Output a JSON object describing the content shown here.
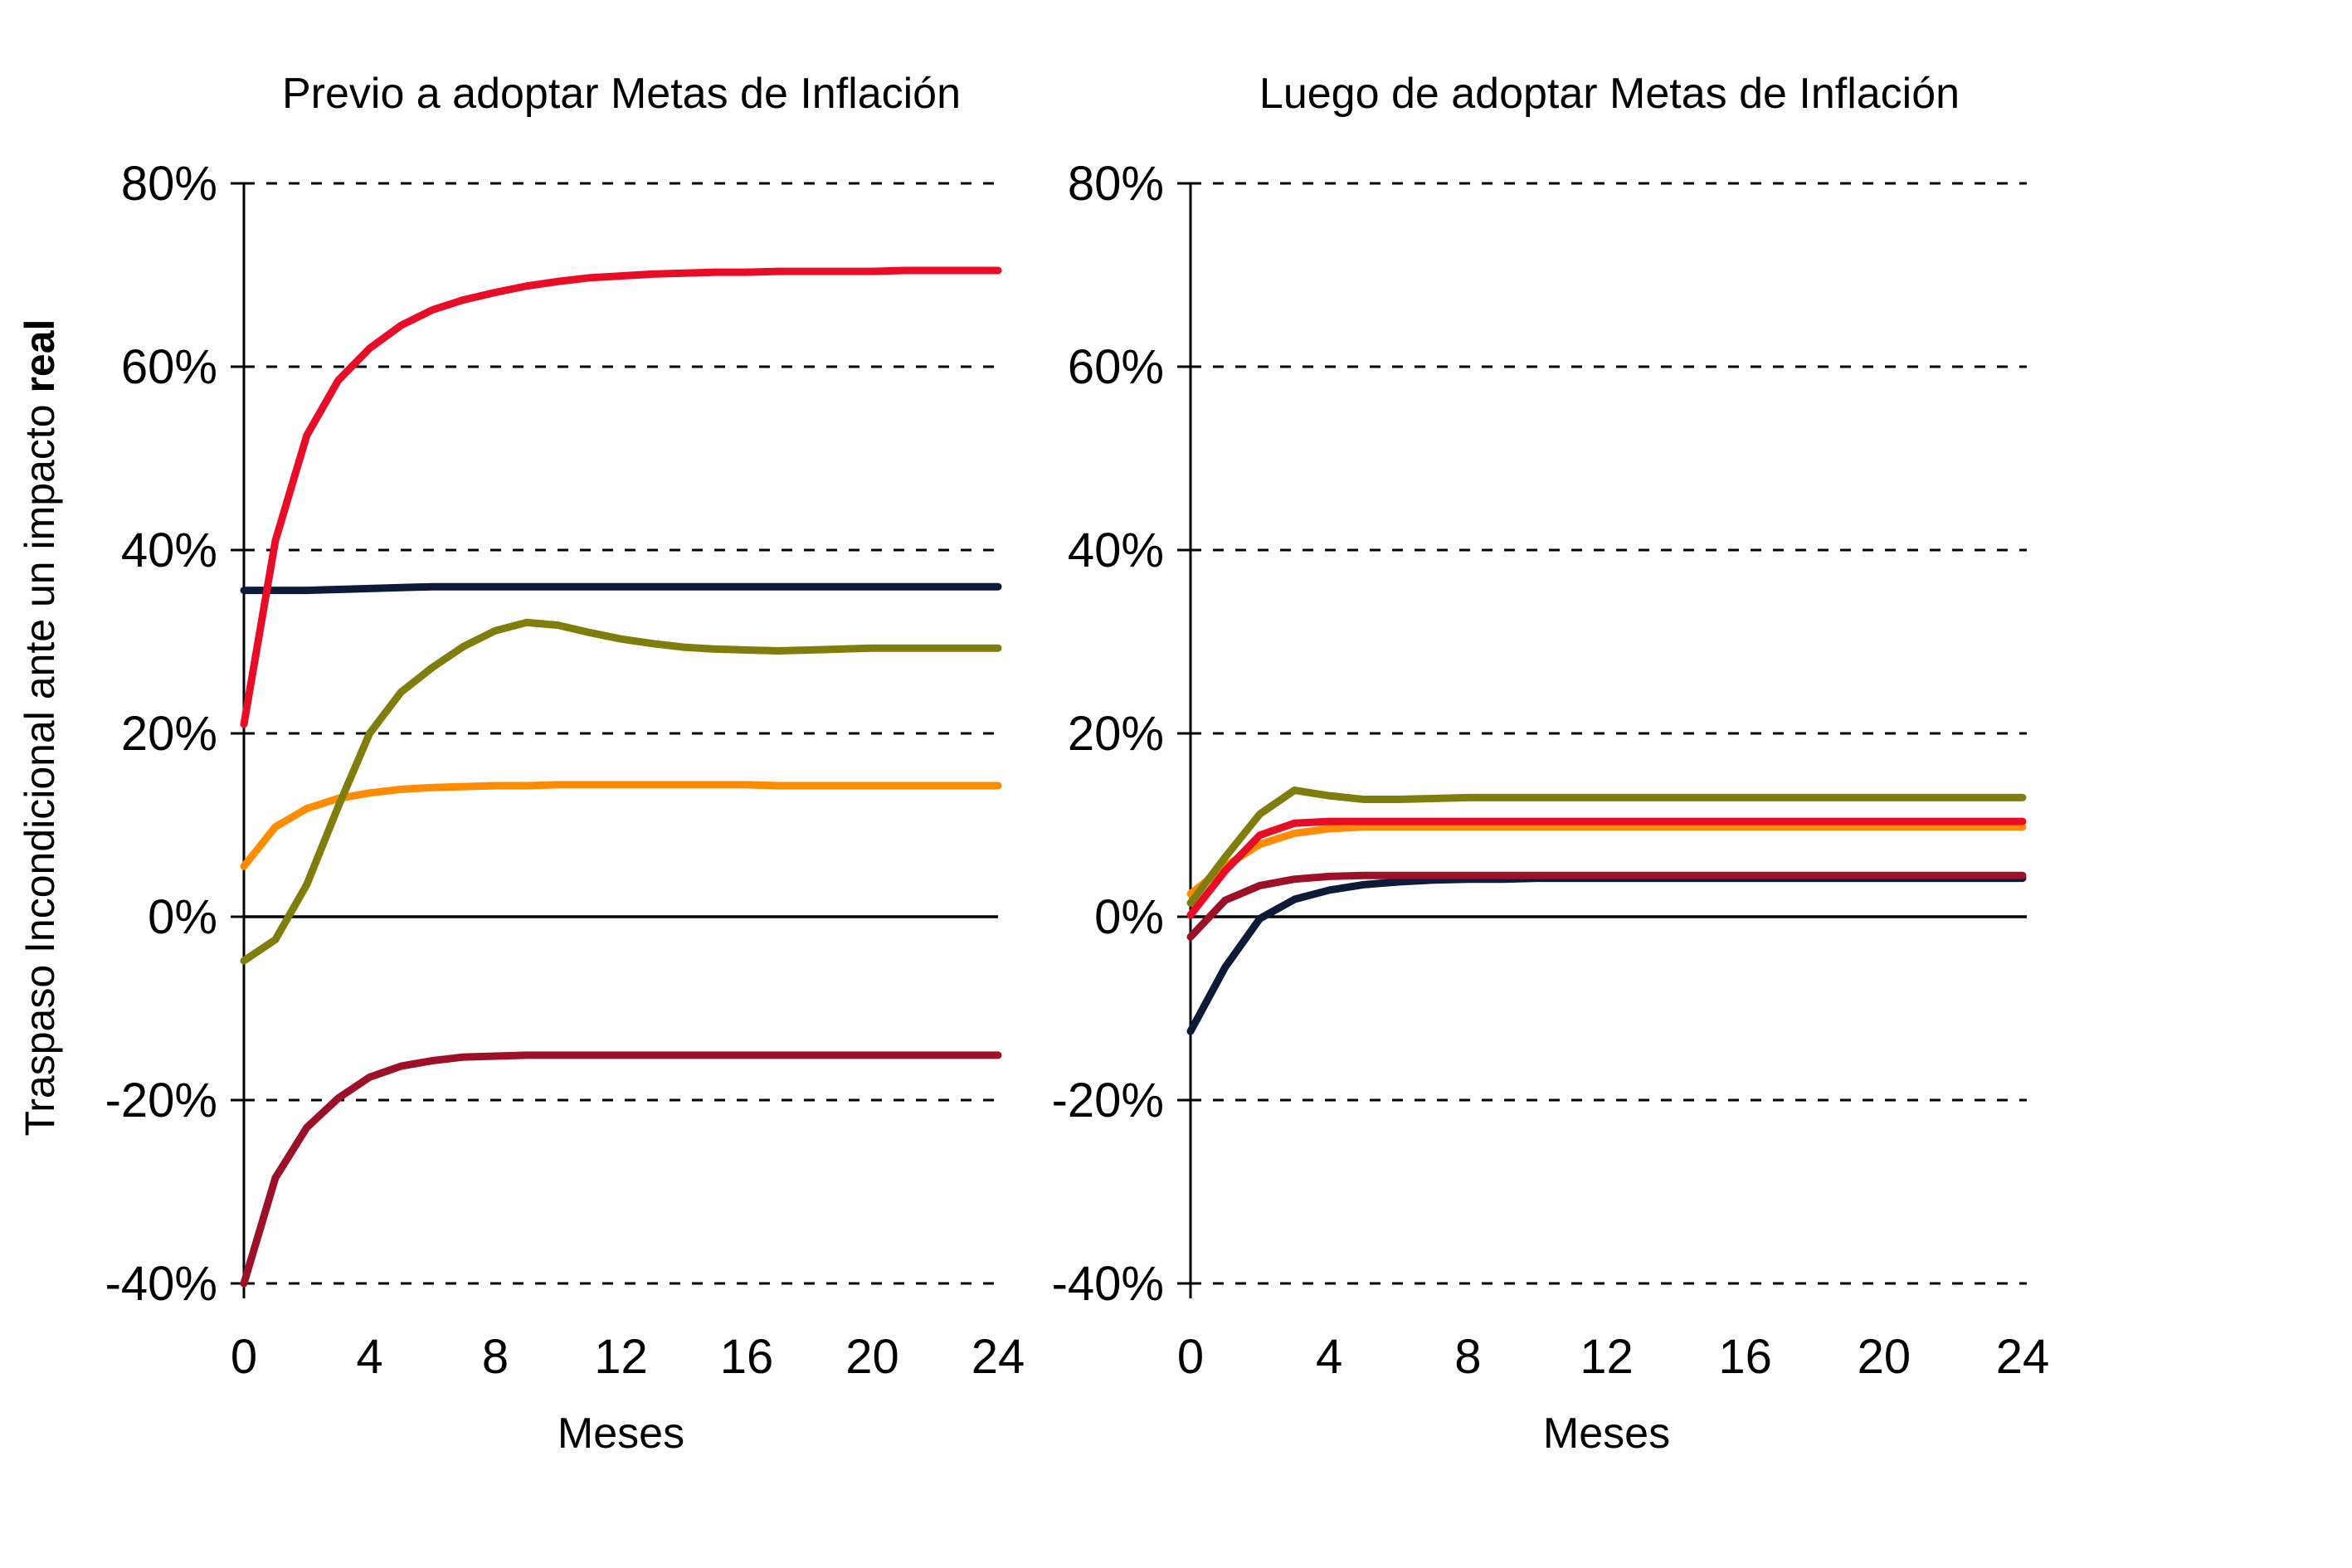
{
  "page": {
    "background": "#FFFFFF"
  },
  "y_axis_label": {
    "normal": "Traspaso Incondicional ante un impacto ",
    "bold": "real"
  },
  "chart_data": [
    {
      "type": "line",
      "title": "Previo a adoptar Metas de Inflación",
      "xlabel": "Meses",
      "ylabel": "Traspaso Incondicional ante un impacto real",
      "xlim": [
        0,
        24
      ],
      "ylim": [
        -40,
        80
      ],
      "x_ticks": [
        0,
        4,
        8,
        12,
        16,
        20,
        24
      ],
      "y_ticks": [
        {
          "label": "80%",
          "value": 80
        },
        {
          "label": "60%",
          "value": 60
        },
        {
          "label": "40%",
          "value": 40
        },
        {
          "label": "20%",
          "value": 20
        },
        {
          "label": "0%",
          "value": 0
        },
        {
          "label": "-20%",
          "value": -20
        },
        {
          "label": "-40%",
          "value": -40
        }
      ],
      "grid": "horizontal-dashed, solid zero line, legend none",
      "x": [
        0,
        1,
        2,
        3,
        4,
        5,
        6,
        7,
        8,
        9,
        10,
        11,
        12,
        13,
        14,
        15,
        16,
        17,
        18,
        19,
        20,
        21,
        22,
        23,
        24
      ],
      "series": [
        {
          "name": "navy",
          "color": "#0D1B38",
          "values": [
            35.6,
            35.6,
            35.6,
            35.7,
            35.8,
            35.9,
            36,
            36,
            36,
            36,
            36,
            36,
            36,
            36,
            36,
            36,
            36,
            36,
            36,
            36,
            36,
            36,
            36,
            36,
            36
          ]
        },
        {
          "name": "maroon",
          "color": "#9C1127",
          "values": [
            -40,
            -28.5,
            -23,
            -19.8,
            -17.5,
            -16.3,
            -15.7,
            -15.3,
            -15.2,
            -15.1,
            -15.1,
            -15.1,
            -15.1,
            -15.1,
            -15.1,
            -15.1,
            -15.1,
            -15.1,
            -15.1,
            -15.1,
            -15.1,
            -15.1,
            -15.1,
            -15.1,
            -15.1
          ]
        },
        {
          "name": "orange",
          "color": "#FF8C00",
          "values": [
            5.5,
            9.8,
            11.8,
            12.9,
            13.5,
            13.9,
            14.1,
            14.2,
            14.3,
            14.3,
            14.4,
            14.4,
            14.4,
            14.4,
            14.4,
            14.4,
            14.4,
            14.3,
            14.3,
            14.3,
            14.3,
            14.3,
            14.3,
            14.3,
            14.3
          ]
        },
        {
          "name": "red",
          "color": "#E80C26",
          "values": [
            21,
            41,
            52.5,
            58.5,
            62,
            64.5,
            66.2,
            67.3,
            68.1,
            68.8,
            69.3,
            69.7,
            69.9,
            70.1,
            70.2,
            70.3,
            70.3,
            70.4,
            70.4,
            70.4,
            70.4,
            70.5,
            70.5,
            70.5,
            70.5
          ]
        },
        {
          "name": "olive",
          "color": "#7F7D0C",
          "values": [
            -4.8,
            -2.5,
            3.5,
            12,
            20,
            24.5,
            27.2,
            29.5,
            31.2,
            32.1,
            31.8,
            31,
            30.3,
            29.8,
            29.4,
            29.2,
            29.1,
            29,
            29.1,
            29.2,
            29.3,
            29.3,
            29.3,
            29.3,
            29.3
          ]
        }
      ]
    },
    {
      "type": "line",
      "title": "Luego de adoptar Metas de Inflación",
      "xlabel": "Meses",
      "ylabel": "Traspaso Incondicional ante un impacto real",
      "xlim": [
        0,
        24
      ],
      "ylim": [
        -40,
        80
      ],
      "x_ticks": [
        0,
        4,
        8,
        12,
        16,
        20,
        24
      ],
      "y_ticks": [
        {
          "label": "80%",
          "value": 80
        },
        {
          "label": "60%",
          "value": 60
        },
        {
          "label": "40%",
          "value": 40
        },
        {
          "label": "20%",
          "value": 20
        },
        {
          "label": "0%",
          "value": 0
        },
        {
          "label": "-20%",
          "value": -20
        },
        {
          "label": "-40%",
          "value": -40
        }
      ],
      "grid": "horizontal-dashed, solid zero line, legend none",
      "x": [
        0,
        1,
        2,
        3,
        4,
        5,
        6,
        7,
        8,
        9,
        10,
        11,
        12,
        13,
        14,
        15,
        16,
        17,
        18,
        19,
        20,
        21,
        22,
        23,
        24
      ],
      "series": [
        {
          "name": "navy",
          "color": "#0D1B38",
          "values": [
            -12.5,
            -5.5,
            -0.2,
            1.9,
            2.9,
            3.5,
            3.8,
            4,
            4.1,
            4.1,
            4.2,
            4.2,
            4.2,
            4.2,
            4.2,
            4.2,
            4.2,
            4.2,
            4.2,
            4.2,
            4.2,
            4.2,
            4.2,
            4.2,
            4.2
          ]
        },
        {
          "name": "maroon",
          "color": "#9C1127",
          "values": [
            -2.2,
            1.8,
            3.4,
            4.1,
            4.4,
            4.5,
            4.5,
            4.5,
            4.5,
            4.5,
            4.5,
            4.5,
            4.5,
            4.5,
            4.5,
            4.5,
            4.5,
            4.5,
            4.5,
            4.5,
            4.5,
            4.5,
            4.5,
            4.5,
            4.5
          ]
        },
        {
          "name": "orange",
          "color": "#FF8C00",
          "values": [
            2.5,
            5.5,
            7.9,
            9.1,
            9.6,
            9.8,
            9.8,
            9.8,
            9.8,
            9.8,
            9.8,
            9.8,
            9.8,
            9.8,
            9.8,
            9.8,
            9.8,
            9.8,
            9.8,
            9.8,
            9.8,
            9.8,
            9.8,
            9.8,
            9.8
          ]
        },
        {
          "name": "red",
          "color": "#E80C26",
          "values": [
            0.2,
            5,
            8.9,
            10.2,
            10.4,
            10.4,
            10.4,
            10.4,
            10.4,
            10.4,
            10.4,
            10.4,
            10.4,
            10.4,
            10.4,
            10.4,
            10.4,
            10.4,
            10.4,
            10.4,
            10.4,
            10.4,
            10.4,
            10.4,
            10.4
          ]
        },
        {
          "name": "olive",
          "color": "#7F7D0C",
          "values": [
            1.5,
            6.5,
            11.2,
            13.8,
            13.2,
            12.8,
            12.8,
            12.9,
            13,
            13,
            13,
            13,
            13,
            13,
            13,
            13,
            13,
            13,
            13,
            13,
            13,
            13,
            13,
            13,
            13
          ]
        }
      ]
    }
  ]
}
